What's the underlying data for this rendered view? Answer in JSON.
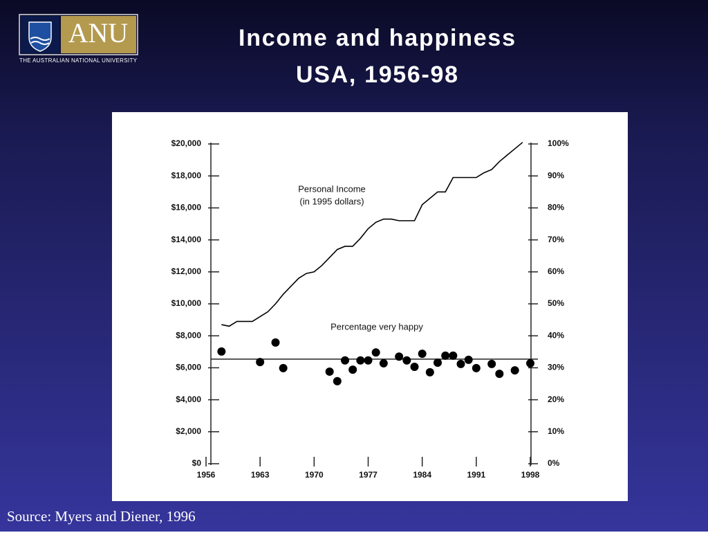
{
  "logo": {
    "mark": "ANU",
    "caption": "THE AUSTRALIAN NATIONAL UNIVERSITY"
  },
  "chart_data": {
    "type": "line",
    "title_lines": [
      "Income and happiness",
      "USA, 1956-98"
    ],
    "source": "Source: Myers and Diener, 1996",
    "xlim": [
      1956,
      1998
    ],
    "xticks": [
      1956,
      1963,
      1970,
      1977,
      1984,
      1991,
      1998
    ],
    "ylim": [
      0,
      20000
    ],
    "yticks": [
      {
        "value": 0,
        "label": "$0"
      },
      {
        "value": 2000,
        "label": "$2,000"
      },
      {
        "value": 4000,
        "label": "$4,000"
      },
      {
        "value": 6000,
        "label": "$6,000"
      },
      {
        "value": 8000,
        "label": "$8,000"
      },
      {
        "value": 10000,
        "label": "$10,000"
      },
      {
        "value": 12000,
        "label": "$12,000"
      },
      {
        "value": 14000,
        "label": "$14,000"
      },
      {
        "value": 16000,
        "label": "$16,000"
      },
      {
        "value": 18000,
        "label": "$18,000"
      },
      {
        "value": 20000,
        "label": "$20,000"
      }
    ],
    "y2lim": [
      0,
      100
    ],
    "y2ticks": [
      {
        "value": 0,
        "label": "0%"
      },
      {
        "value": 10,
        "label": "10%"
      },
      {
        "value": 20,
        "label": "20%"
      },
      {
        "value": 30,
        "label": "30%"
      },
      {
        "value": 40,
        "label": "40%"
      },
      {
        "value": 50,
        "label": "50%"
      },
      {
        "value": 60,
        "label": "60%"
      },
      {
        "value": 70,
        "label": "70%"
      },
      {
        "value": 80,
        "label": "80%"
      },
      {
        "value": 90,
        "label": "90%"
      },
      {
        "value": 100,
        "label": "100%"
      }
    ],
    "series": [
      {
        "label_lines": [
          "Personal Income",
          "(in 1995 dollars)"
        ],
        "color": "#000000",
        "style": "line",
        "x": [
          1958,
          1959,
          1960,
          1961,
          1962,
          1963,
          1964,
          1965,
          1966,
          1967,
          1968,
          1969,
          1970,
          1971,
          1972,
          1973,
          1974,
          1975,
          1976,
          1977,
          1978,
          1979,
          1980,
          1981,
          1982,
          1983,
          1984,
          1985,
          1986,
          1987,
          1988,
          1989,
          1990,
          1991,
          1992,
          1993,
          1994,
          1995,
          1996,
          1997
        ],
        "values": [
          8700,
          8600,
          8900,
          8900,
          8900,
          9200,
          9500,
          10000,
          10600,
          11100,
          11600,
          11900,
          12000,
          12400,
          12900,
          13400,
          13600,
          13600,
          14100,
          14700,
          15100,
          15300,
          15300,
          15200,
          15200,
          15200,
          16200,
          16600,
          17000,
          17000,
          17900,
          17900,
          17900,
          17900,
          18200,
          18400,
          18900,
          19300,
          19700,
          20100
        ]
      },
      {
        "label_lines": [
          "Percentage very happy"
        ],
        "color": "#000000",
        "style": "dots",
        "axis": "y2",
        "x": [
          1958,
          1963,
          1965,
          1966,
          1972,
          1973,
          1974,
          1975,
          1976,
          1977,
          1978,
          1979,
          1981,
          1982,
          1983,
          1984,
          1985,
          1986,
          1987,
          1988,
          1989,
          1990,
          1991,
          1993,
          1994,
          1996,
          1998
        ],
        "values": [
          35.1,
          31.8,
          37.9,
          29.9,
          28.8,
          25.8,
          32.3,
          29.4,
          32.3,
          32.3,
          34.8,
          31.4,
          33.5,
          32.3,
          30.3,
          34.4,
          28.6,
          31.6,
          33.8,
          33.8,
          31.2,
          32.5,
          29.9,
          31.2,
          28.1,
          29.2,
          31.4
        ],
        "reference_line": 32.7
      }
    ]
  }
}
